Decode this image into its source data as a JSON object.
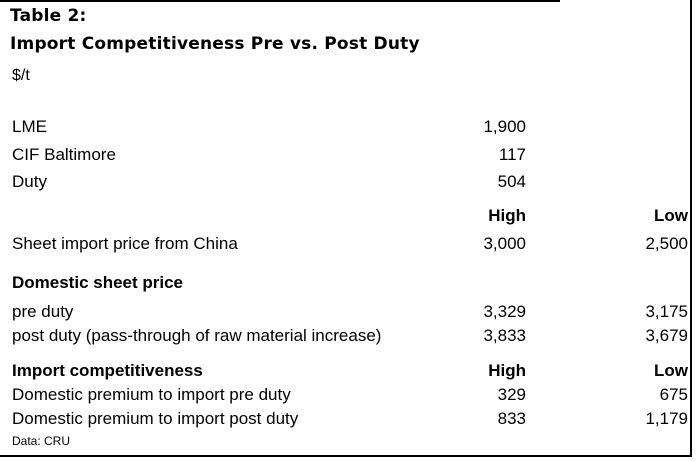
{
  "title_line1": "Table 2:",
  "title_line2": "Import Competitiveness Pre vs. Post Duty",
  "unit": "$/t",
  "base_rows": [
    {
      "label": "LME",
      "value": "1,900"
    },
    {
      "label": "CIF Baltimore",
      "value": "117"
    },
    {
      "label": "Duty",
      "value": "504"
    }
  ],
  "col_headers": {
    "high": "High",
    "low": "Low"
  },
  "import_row": {
    "label": "Sheet import price from China",
    "high": "3,000",
    "low": "2,500"
  },
  "domestic_section": {
    "title": "Domestic sheet price",
    "rows": [
      {
        "label": "pre duty",
        "high": "3,329",
        "low": "3,175"
      },
      {
        "label": "post duty (pass-through of raw material increase)",
        "high": "3,833",
        "low": "3,679"
      }
    ]
  },
  "competitiveness_section": {
    "title": "Import competitiveness",
    "high": "High",
    "low": "Low",
    "rows": [
      {
        "label": "Domestic premium to import pre duty",
        "high": "329",
        "low": "675"
      },
      {
        "label": "Domestic premium to import post duty",
        "high": "833",
        "low": "1,179"
      }
    ]
  },
  "source": "Data: CRU"
}
